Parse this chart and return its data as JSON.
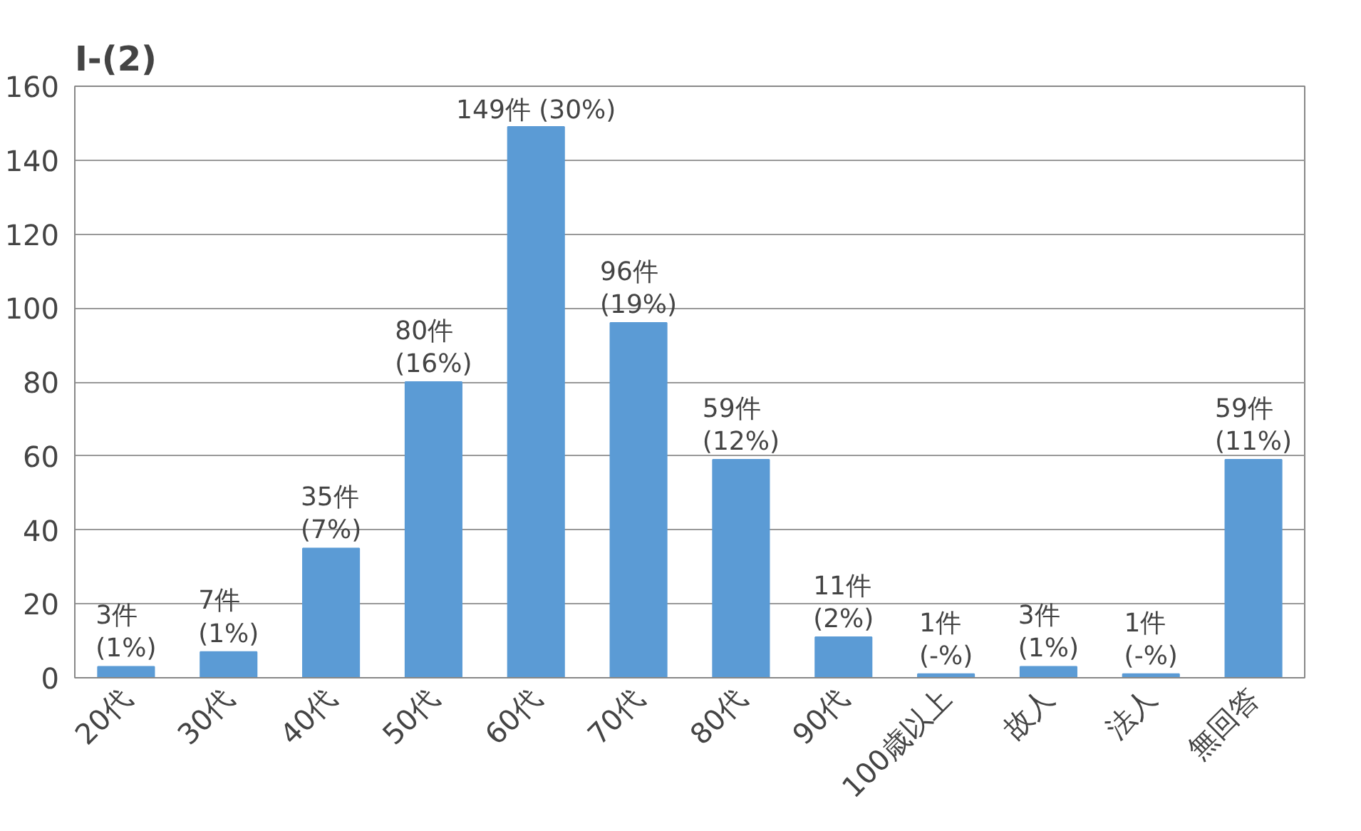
{
  "chart_data": {
    "type": "bar",
    "title": "Ⅰ-(2)",
    "categories": [
      "20代",
      "30代",
      "40代",
      "50代",
      "60代",
      "70代",
      "80代",
      "90代",
      "100歳以上",
      "故人",
      "法人",
      "無回答"
    ],
    "values": [
      3,
      7,
      35,
      80,
      149,
      96,
      59,
      11,
      1,
      3,
      1,
      59
    ],
    "value_labels": [
      "3件\n(1%)",
      "7件\n(1%)",
      "35件\n(7%)",
      "80件\n(16%)",
      "149件\n(30%)",
      "96件\n(19%)",
      "59件\n(12%)",
      "11件\n(2%)",
      "1件\n(-%)",
      "3件\n(1%)",
      "1件\n(-%)",
      "59件\n(11%)"
    ],
    "color": "#5b9bd5",
    "ylim": [
      0,
      160
    ],
    "yticks": [
      0,
      20,
      40,
      60,
      80,
      100,
      120,
      140,
      160
    ],
    "grid": "y"
  }
}
